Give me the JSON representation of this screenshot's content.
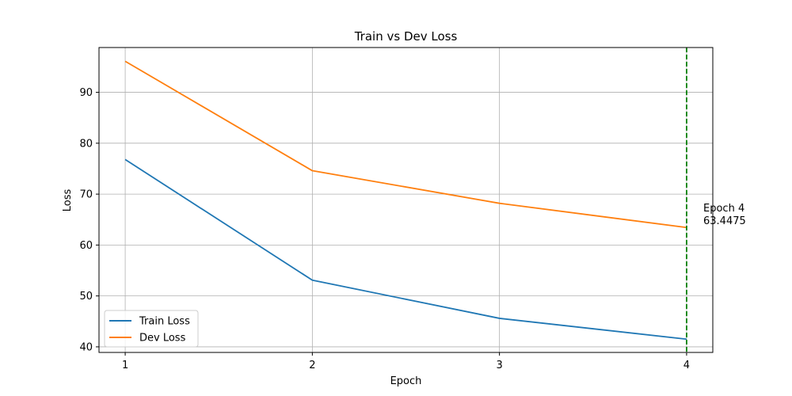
{
  "chart_data": {
    "type": "line",
    "title": "Train vs Dev Loss",
    "xlabel": "Epoch",
    "ylabel": "Loss",
    "x": [
      1,
      2,
      3,
      4
    ],
    "xlim": [
      0.86,
      4.14
    ],
    "ylim": [
      38.9,
      98.8
    ],
    "xticks": [
      "1",
      "2",
      "3",
      "4"
    ],
    "yticks": [
      "40",
      "50",
      "60",
      "70",
      "80",
      "90"
    ],
    "grid": true,
    "legend_position": "lower-left",
    "series": [
      {
        "name": "Train Loss",
        "color": "#1f77b4",
        "values": [
          76.8,
          53.1,
          45.6,
          41.5
        ]
      },
      {
        "name": "Dev Loss",
        "color": "#ff7f0e",
        "values": [
          96.1,
          74.6,
          68.2,
          63.4475
        ]
      }
    ],
    "marker_line": {
      "x": 4,
      "color": "#008000",
      "style": "dashed"
    },
    "annotation": {
      "x": 4,
      "line1": "Epoch 4",
      "line2": "63.4475"
    }
  }
}
